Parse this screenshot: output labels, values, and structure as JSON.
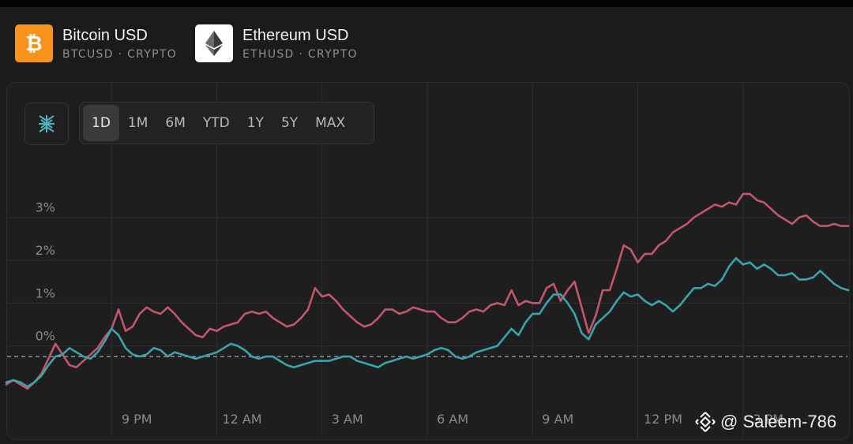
{
  "assets": [
    {
      "name": "Bitcoin USD",
      "sub": "BTCUSD · CRYPTO",
      "logo_color": "#f7931a",
      "icon": "bitcoin-icon"
    },
    {
      "name": "Ethereum USD",
      "sub": "ETHUSD · CRYPTO",
      "logo_color": "#ffffff",
      "icon": "ethereum-icon"
    }
  ],
  "ranges": [
    {
      "label": "1D",
      "active": true
    },
    {
      "label": "1M",
      "active": false
    },
    {
      "label": "6M",
      "active": false
    },
    {
      "label": "YTD",
      "active": false
    },
    {
      "label": "1Y",
      "active": false
    },
    {
      "label": "5Y",
      "active": false
    },
    {
      "label": "MAX",
      "active": false
    }
  ],
  "compare_icon": "compare-icon",
  "watermark": "@ Saleem-786",
  "colors": {
    "btc": "#c2566a",
    "eth": "#3aa3ac",
    "grid": "#2d2d30",
    "text": "#8a8a8a",
    "baseline": "#9a9a9a"
  },
  "chart_data": {
    "type": "line",
    "y_ticks": [
      {
        "value": 0,
        "label": "0%"
      },
      {
        "value": 1,
        "label": "1%"
      },
      {
        "value": 2,
        "label": "2%"
      },
      {
        "value": 3,
        "label": "3%"
      }
    ],
    "x_ticks": [
      {
        "value": 0,
        "label": "9 PM"
      },
      {
        "value": 3,
        "label": "12 AM"
      },
      {
        "value": 6,
        "label": "3 AM"
      },
      {
        "value": 9,
        "label": "6 AM"
      },
      {
        "value": 12,
        "label": "9 AM"
      },
      {
        "value": 15,
        "label": "12 PM"
      },
      {
        "value": 18,
        "label": "3 PM"
      }
    ],
    "x_unit_note": "",
    "baseline": -0.25,
    "ylim": [
      -1.5,
      4.8
    ],
    "xlim": [
      -3,
      21
    ],
    "series": [
      {
        "name": "",
        "key": "btc",
        "points": [
          [
            -3.0,
            -0.9
          ],
          [
            -2.8,
            -0.8
          ],
          [
            -2.6,
            -0.9
          ],
          [
            -2.4,
            -1.0
          ],
          [
            -2.2,
            -0.85
          ],
          [
            -2.0,
            -0.65
          ],
          [
            -1.8,
            -0.3
          ],
          [
            -1.6,
            0.05
          ],
          [
            -1.4,
            -0.2
          ],
          [
            -1.2,
            -0.45
          ],
          [
            -1.0,
            -0.5
          ],
          [
            -0.8,
            -0.35
          ],
          [
            -0.6,
            -0.2
          ],
          [
            -0.4,
            -0.05
          ],
          [
            -0.2,
            0.2
          ],
          [
            0.0,
            0.4
          ],
          [
            0.2,
            0.85
          ],
          [
            0.4,
            0.35
          ],
          [
            0.6,
            0.45
          ],
          [
            0.8,
            0.75
          ],
          [
            1.0,
            0.9
          ],
          [
            1.2,
            0.8
          ],
          [
            1.4,
            0.75
          ],
          [
            1.6,
            0.9
          ],
          [
            1.8,
            0.75
          ],
          [
            2.0,
            0.55
          ],
          [
            2.2,
            0.4
          ],
          [
            2.4,
            0.25
          ],
          [
            2.6,
            0.2
          ],
          [
            2.8,
            0.4
          ],
          [
            3.0,
            0.35
          ],
          [
            3.2,
            0.45
          ],
          [
            3.4,
            0.5
          ],
          [
            3.6,
            0.55
          ],
          [
            3.8,
            0.75
          ],
          [
            4.0,
            0.8
          ],
          [
            4.2,
            0.75
          ],
          [
            4.4,
            0.8
          ],
          [
            4.6,
            0.65
          ],
          [
            4.8,
            0.55
          ],
          [
            5.0,
            0.45
          ],
          [
            5.2,
            0.5
          ],
          [
            5.4,
            0.65
          ],
          [
            5.6,
            0.85
          ],
          [
            5.8,
            1.35
          ],
          [
            6.0,
            1.15
          ],
          [
            6.2,
            1.2
          ],
          [
            6.4,
            1.05
          ],
          [
            6.6,
            0.85
          ],
          [
            6.8,
            0.7
          ],
          [
            7.0,
            0.55
          ],
          [
            7.2,
            0.45
          ],
          [
            7.4,
            0.5
          ],
          [
            7.6,
            0.65
          ],
          [
            7.8,
            0.85
          ],
          [
            8.0,
            0.85
          ],
          [
            8.2,
            0.75
          ],
          [
            8.4,
            0.8
          ],
          [
            8.6,
            0.9
          ],
          [
            8.8,
            0.85
          ],
          [
            9.0,
            0.8
          ],
          [
            9.2,
            0.8
          ],
          [
            9.4,
            0.65
          ],
          [
            9.6,
            0.55
          ],
          [
            9.8,
            0.55
          ],
          [
            10.0,
            0.65
          ],
          [
            10.2,
            0.8
          ],
          [
            10.4,
            0.85
          ],
          [
            10.6,
            0.8
          ],
          [
            10.8,
            0.95
          ],
          [
            11.0,
            1.0
          ],
          [
            11.2,
            0.95
          ],
          [
            11.4,
            1.3
          ],
          [
            11.6,
            0.95
          ],
          [
            11.8,
            1.05
          ],
          [
            12.0,
            1.0
          ],
          [
            12.2,
            1.0
          ],
          [
            12.4,
            1.35
          ],
          [
            12.6,
            1.45
          ],
          [
            12.8,
            1.05
          ],
          [
            13.0,
            1.3
          ],
          [
            13.2,
            1.5
          ],
          [
            13.4,
            0.9
          ],
          [
            13.6,
            0.3
          ],
          [
            13.8,
            0.7
          ],
          [
            14.0,
            1.3
          ],
          [
            14.2,
            1.3
          ],
          [
            14.4,
            1.8
          ],
          [
            14.6,
            2.35
          ],
          [
            14.8,
            2.25
          ],
          [
            15.0,
            1.95
          ],
          [
            15.2,
            2.15
          ],
          [
            15.4,
            2.15
          ],
          [
            15.6,
            2.35
          ],
          [
            15.8,
            2.45
          ],
          [
            16.0,
            2.65
          ],
          [
            16.2,
            2.75
          ],
          [
            16.4,
            2.85
          ],
          [
            16.6,
            3.0
          ],
          [
            16.8,
            3.1
          ],
          [
            17.0,
            3.2
          ],
          [
            17.2,
            3.3
          ],
          [
            17.4,
            3.25
          ],
          [
            17.6,
            3.35
          ],
          [
            17.8,
            3.3
          ],
          [
            18.0,
            3.55
          ],
          [
            18.2,
            3.55
          ],
          [
            18.4,
            3.4
          ],
          [
            18.6,
            3.35
          ],
          [
            18.8,
            3.2
          ],
          [
            19.0,
            3.05
          ],
          [
            19.2,
            2.95
          ],
          [
            19.4,
            2.85
          ],
          [
            19.6,
            3.0
          ],
          [
            19.8,
            3.05
          ],
          [
            20.0,
            2.9
          ],
          [
            20.2,
            2.8
          ],
          [
            20.4,
            2.8
          ],
          [
            20.6,
            2.85
          ],
          [
            20.8,
            2.8
          ],
          [
            21.0,
            2.8
          ]
        ]
      },
      {
        "name": "",
        "key": "eth",
        "points": [
          [
            -3.0,
            -0.85
          ],
          [
            -2.8,
            -0.8
          ],
          [
            -2.6,
            -0.85
          ],
          [
            -2.4,
            -0.95
          ],
          [
            -2.2,
            -0.85
          ],
          [
            -2.0,
            -0.7
          ],
          [
            -1.8,
            -0.45
          ],
          [
            -1.6,
            -0.25
          ],
          [
            -1.4,
            -0.2
          ],
          [
            -1.2,
            -0.05
          ],
          [
            -1.0,
            -0.15
          ],
          [
            -0.8,
            -0.25
          ],
          [
            -0.6,
            -0.3
          ],
          [
            -0.4,
            -0.15
          ],
          [
            -0.2,
            0.1
          ],
          [
            0.0,
            0.4
          ],
          [
            0.2,
            0.25
          ],
          [
            0.4,
            -0.05
          ],
          [
            0.6,
            -0.2
          ],
          [
            0.8,
            -0.25
          ],
          [
            1.0,
            -0.2
          ],
          [
            1.2,
            -0.05
          ],
          [
            1.4,
            -0.1
          ],
          [
            1.6,
            -0.25
          ],
          [
            1.8,
            -0.15
          ],
          [
            2.0,
            -0.2
          ],
          [
            2.2,
            -0.25
          ],
          [
            2.4,
            -0.3
          ],
          [
            2.6,
            -0.25
          ],
          [
            2.8,
            -0.2
          ],
          [
            3.0,
            -0.15
          ],
          [
            3.2,
            -0.05
          ],
          [
            3.4,
            0.05
          ],
          [
            3.6,
            0.0
          ],
          [
            3.8,
            -0.1
          ],
          [
            4.0,
            -0.25
          ],
          [
            4.2,
            -0.3
          ],
          [
            4.4,
            -0.25
          ],
          [
            4.6,
            -0.25
          ],
          [
            4.8,
            -0.35
          ],
          [
            5.0,
            -0.45
          ],
          [
            5.2,
            -0.5
          ],
          [
            5.4,
            -0.45
          ],
          [
            5.6,
            -0.4
          ],
          [
            5.8,
            -0.35
          ],
          [
            6.0,
            -0.35
          ],
          [
            6.2,
            -0.35
          ],
          [
            6.4,
            -0.3
          ],
          [
            6.6,
            -0.25
          ],
          [
            6.8,
            -0.25
          ],
          [
            7.0,
            -0.35
          ],
          [
            7.2,
            -0.4
          ],
          [
            7.4,
            -0.45
          ],
          [
            7.6,
            -0.5
          ],
          [
            7.8,
            -0.4
          ],
          [
            8.0,
            -0.35
          ],
          [
            8.2,
            -0.3
          ],
          [
            8.4,
            -0.25
          ],
          [
            8.6,
            -0.3
          ],
          [
            8.8,
            -0.25
          ],
          [
            9.0,
            -0.2
          ],
          [
            9.2,
            -0.1
          ],
          [
            9.4,
            -0.05
          ],
          [
            9.6,
            -0.1
          ],
          [
            9.8,
            -0.25
          ],
          [
            10.0,
            -0.3
          ],
          [
            10.2,
            -0.25
          ],
          [
            10.4,
            -0.15
          ],
          [
            10.6,
            -0.1
          ],
          [
            10.8,
            -0.05
          ],
          [
            11.0,
            0.0
          ],
          [
            11.2,
            0.2
          ],
          [
            11.4,
            0.4
          ],
          [
            11.6,
            0.25
          ],
          [
            11.8,
            0.55
          ],
          [
            12.0,
            0.75
          ],
          [
            12.2,
            0.75
          ],
          [
            12.4,
            1.0
          ],
          [
            12.6,
            1.2
          ],
          [
            12.8,
            1.2
          ],
          [
            13.0,
            1.0
          ],
          [
            13.2,
            0.75
          ],
          [
            13.4,
            0.3
          ],
          [
            13.6,
            0.15
          ],
          [
            13.8,
            0.5
          ],
          [
            14.0,
            0.65
          ],
          [
            14.2,
            0.8
          ],
          [
            14.4,
            1.05
          ],
          [
            14.6,
            1.25
          ],
          [
            14.8,
            1.15
          ],
          [
            15.0,
            1.2
          ],
          [
            15.2,
            1.05
          ],
          [
            15.4,
            0.95
          ],
          [
            15.6,
            1.05
          ],
          [
            15.8,
            0.95
          ],
          [
            16.0,
            0.8
          ],
          [
            16.2,
            0.95
          ],
          [
            16.4,
            1.15
          ],
          [
            16.6,
            1.35
          ],
          [
            16.8,
            1.35
          ],
          [
            17.0,
            1.45
          ],
          [
            17.2,
            1.4
          ],
          [
            17.4,
            1.55
          ],
          [
            17.6,
            1.85
          ],
          [
            17.8,
            2.05
          ],
          [
            18.0,
            1.9
          ],
          [
            18.2,
            1.95
          ],
          [
            18.4,
            1.8
          ],
          [
            18.6,
            1.9
          ],
          [
            18.8,
            1.8
          ],
          [
            19.0,
            1.65
          ],
          [
            19.2,
            1.65
          ],
          [
            19.4,
            1.7
          ],
          [
            19.6,
            1.55
          ],
          [
            19.8,
            1.55
          ],
          [
            20.0,
            1.6
          ],
          [
            20.2,
            1.75
          ],
          [
            20.4,
            1.6
          ],
          [
            20.6,
            1.45
          ],
          [
            20.8,
            1.35
          ],
          [
            21.0,
            1.3
          ]
        ]
      }
    ]
  }
}
